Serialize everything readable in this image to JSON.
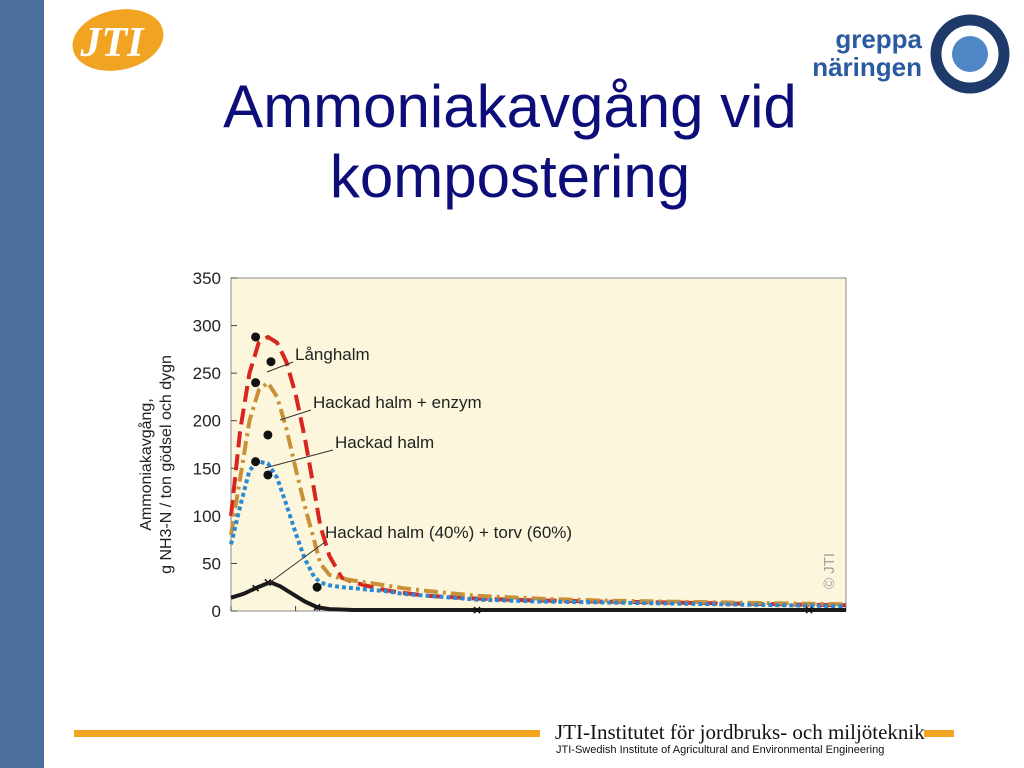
{
  "slide": {
    "title_line1": "Ammoniakavgång vid",
    "title_line2": "kompostering",
    "logo_left": "JTI",
    "logo_right_line1": "greppa",
    "logo_right_line2": "näringen",
    "footer_main": "JTI-Institutet för jordbruks- och miljöteknik",
    "footer_sub": "JTI-Swedish Institute of Agricultural and Environmental Engineering",
    "colors": {
      "sidebar": "#4a6f9c",
      "title": "#0d0d7a",
      "accent": "#f0a422",
      "plot_bg": "#fcf7dc",
      "greppa_blue": "#2a5aa0",
      "greppa_navy": "#1e3a6b"
    }
  },
  "chart_data": {
    "type": "line",
    "ylabel_line1": "Ammoniakavgång,",
    "ylabel_line2": "g NH3-N / ton gödsel och dygn",
    "ylim": [
      0,
      350
    ],
    "yticks": [
      0,
      50,
      100,
      150,
      200,
      250,
      300,
      350
    ],
    "xlim": [
      0,
      100
    ],
    "grid": false,
    "watermark": "© JTI",
    "series": [
      {
        "name": "Långhalm",
        "color": "#d8261f",
        "dash": "16,7",
        "x": [
          0,
          1.5,
          3,
          4.5,
          6,
          7.5,
          9,
          10.5,
          12,
          13.5,
          14.5,
          16,
          18,
          20,
          23,
          25,
          28,
          32,
          40,
          50,
          60,
          70,
          80,
          90,
          100
        ],
        "values": [
          100,
          190,
          250,
          282,
          288,
          282,
          262,
          228,
          182,
          128,
          90,
          58,
          35,
          30,
          25,
          22,
          19,
          16,
          13,
          11,
          10,
          9,
          8,
          7,
          6
        ],
        "marker_x": [
          4,
          6.5
        ],
        "marker_y": [
          288,
          262
        ]
      },
      {
        "name": "Hackad halm + enzym",
        "color": "#c99038",
        "dash": "14,5,3,5",
        "x": [
          0,
          1.5,
          3,
          4.5,
          6,
          7.5,
          9,
          10.5,
          12,
          13.5,
          14.5,
          16,
          18,
          20,
          23,
          25,
          28,
          32,
          40,
          50,
          60,
          70,
          80,
          90,
          100
        ],
        "values": [
          80,
          140,
          200,
          232,
          240,
          225,
          192,
          150,
          110,
          75,
          50,
          38,
          34,
          32,
          29,
          27,
          24,
          21,
          16,
          13,
          11,
          10,
          9,
          8,
          7
        ],
        "marker_x": [
          4,
          6
        ],
        "marker_y": [
          240,
          185
        ]
      },
      {
        "name": "Hackad halm",
        "color": "#2b8ad6",
        "dash": "4,3",
        "x": [
          0,
          1.5,
          3,
          4.5,
          6,
          7.5,
          9,
          10.5,
          12,
          13.5,
          14.5,
          16,
          18,
          20,
          23,
          25,
          28,
          32,
          40,
          50,
          60,
          70,
          80,
          90,
          100
        ],
        "values": [
          70,
          110,
          148,
          157,
          155,
          140,
          112,
          82,
          55,
          36,
          30,
          27,
          25,
          24,
          22,
          21,
          18,
          16,
          12,
          10,
          9,
          8,
          7,
          6,
          5
        ],
        "marker_x": [
          4,
          6,
          14
        ],
        "marker_y": [
          157,
          143,
          25
        ]
      },
      {
        "name": "Hackad halm (40%) + torv (60%)",
        "color": "#1a1a1a",
        "dash": "",
        "x": [
          0,
          2,
          4,
          5.5,
          6.5,
          8,
          10,
          12,
          14,
          16,
          20,
          30,
          40,
          50,
          60,
          70,
          80,
          90,
          100
        ],
        "values": [
          14,
          18,
          24,
          28,
          30,
          26,
          18,
          10,
          4,
          2,
          1,
          1,
          1,
          1,
          1,
          1,
          1,
          1,
          1
        ],
        "marker_x": [
          4,
          6,
          14,
          40,
          94
        ],
        "marker_y": [
          24,
          30,
          4,
          1,
          1
        ]
      }
    ],
    "annotations": [
      {
        "text": "Långhalm",
        "series": 0
      },
      {
        "text": "Hackad halm + enzym",
        "series": 1
      },
      {
        "text": "Hackad halm",
        "series": 2
      },
      {
        "text": "Hackad halm (40%) + torv (60%)",
        "series": 3
      }
    ]
  }
}
